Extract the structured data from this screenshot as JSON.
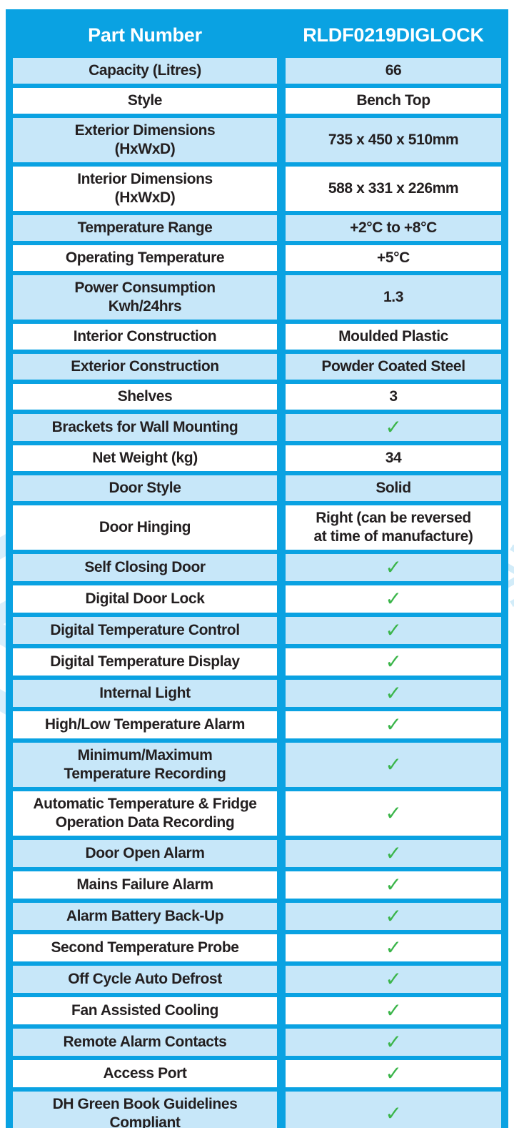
{
  "decor": {
    "snowflake_glyph": "❄"
  },
  "colors": {
    "table_border_blue": "#0aa2e2",
    "row_tint_blue": "#c7e7f9",
    "row_white": "#ffffff",
    "header_text": "#ffffff",
    "body_text": "#231f20",
    "check_green": "#3bb54a",
    "watermark_blue": "#d9eefb"
  },
  "table": {
    "check_mark": "✓",
    "header": {
      "label": "Part Number",
      "value": "RLDF0219DIGLOCK"
    },
    "rows": [
      {
        "label": "Capacity (Litres)",
        "value": "66"
      },
      {
        "label": "Style",
        "value": "Bench Top"
      },
      {
        "label": "Exterior Dimensions\n(HxWxD)",
        "value": "735 x 450 x 510mm"
      },
      {
        "label": "Interior Dimensions\n(HxWxD)",
        "value": "588 x 331 x 226mm"
      },
      {
        "label": "Temperature Range",
        "value": "+2°C to +8°C"
      },
      {
        "label": "Operating Temperature",
        "value": "+5°C"
      },
      {
        "label": "Power Consumption\nKwh/24hrs",
        "value": "1.3"
      },
      {
        "label": "Interior Construction",
        "value": "Moulded Plastic"
      },
      {
        "label": "Exterior Construction",
        "value": "Powder Coated Steel"
      },
      {
        "label": "Shelves",
        "value": "3"
      },
      {
        "label": "Brackets for Wall Mounting",
        "check": true
      },
      {
        "label": "Net Weight (kg)",
        "value": "34"
      },
      {
        "label": "Door Style",
        "value": "Solid"
      },
      {
        "label": "Door Hinging",
        "value": "Right (can be reversed\nat time of manufacture)"
      },
      {
        "label": "Self Closing Door",
        "check": true
      },
      {
        "label": "Digital Door Lock",
        "check": true
      },
      {
        "label": "Digital Temperature Control",
        "check": true
      },
      {
        "label": "Digital Temperature Display",
        "check": true
      },
      {
        "label": "Internal Light",
        "check": true
      },
      {
        "label": "High/Low Temperature Alarm",
        "check": true
      },
      {
        "label": "Minimum/Maximum\nTemperature Recording",
        "check": true
      },
      {
        "label": "Automatic Temperature & Fridge\nOperation Data Recording",
        "check": true
      },
      {
        "label": "Door Open Alarm",
        "check": true
      },
      {
        "label": "Mains Failure Alarm",
        "check": true
      },
      {
        "label": "Alarm Battery Back-Up",
        "check": true
      },
      {
        "label": "Second Temperature Probe",
        "check": true
      },
      {
        "label": "Off Cycle Auto Defrost",
        "check": true
      },
      {
        "label": "Fan Assisted Cooling",
        "check": true
      },
      {
        "label": "Remote Alarm Contacts",
        "check": true
      },
      {
        "label": "Access Port",
        "check": true
      },
      {
        "label": "DH Green Book Guidelines\nCompliant",
        "check": true
      }
    ]
  }
}
